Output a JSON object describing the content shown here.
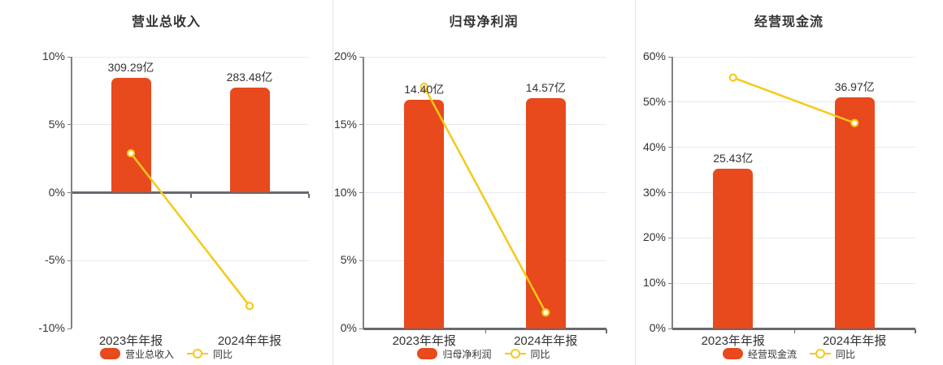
{
  "page": {
    "background": "#ffffff"
  },
  "colors": {
    "bar": "#E8491D",
    "line": "#F5C918",
    "marker_fill": "#FFFFFF",
    "grid": "#E4EAF3",
    "axis": "#7F8287",
    "zero_line": "#66696E",
    "text": "#333333",
    "divider": "#E4E4E4"
  },
  "chart_data": [
    {
      "type": "bar",
      "title": "营业总收入",
      "categories": [
        "2023年年报",
        "2024年年报"
      ],
      "bar_series": {
        "name": "营业总收入",
        "unit": "亿",
        "value_labels": [
          "309.29亿",
          "283.48亿"
        ],
        "values_yi": [
          309.29,
          283.48
        ],
        "heights_axis_pct": [
          8.45,
          7.74
        ]
      },
      "line_series": {
        "name": "同比",
        "values_pct": [
          2.9,
          -8.34
        ]
      },
      "yaxis": {
        "min": -10,
        "max": 10,
        "step": 5,
        "tick_suffix": "%"
      },
      "legend": [
        "营业总收入",
        "同比"
      ],
      "legend_position": "bottom",
      "grid": true
    },
    {
      "type": "bar",
      "title": "归母净利润",
      "categories": [
        "2023年年报",
        "2024年年报"
      ],
      "bar_series": {
        "name": "归母净利润",
        "unit": "亿",
        "value_labels": [
          "14.40亿",
          "14.57亿"
        ],
        "values_yi": [
          14.4,
          14.57
        ],
        "heights_axis_pct": [
          16.84,
          16.96
        ]
      },
      "line_series": {
        "name": "同比",
        "values_pct": [
          17.8,
          1.18
        ]
      },
      "yaxis": {
        "min": 0,
        "max": 20,
        "step": 5,
        "tick_suffix": "%"
      },
      "legend": [
        "归母净利润",
        "同比"
      ],
      "legend_position": "bottom",
      "grid": true
    },
    {
      "type": "bar",
      "title": "经营现金流",
      "categories": [
        "2023年年报",
        "2024年年报"
      ],
      "bar_series": {
        "name": "经营现金流",
        "unit": "亿",
        "value_labels": [
          "25.43亿",
          "36.97亿"
        ],
        "values_yi": [
          25.43,
          36.97
        ],
        "heights_axis_pct": [
          35.2,
          51.1
        ]
      },
      "line_series": {
        "name": "同比",
        "values_pct": [
          55.4,
          45.38
        ]
      },
      "yaxis": {
        "min": 0,
        "max": 60,
        "step": 10,
        "tick_suffix": "%"
      },
      "legend": [
        "经营现金流",
        "同比"
      ],
      "legend_position": "bottom",
      "grid": true
    }
  ]
}
